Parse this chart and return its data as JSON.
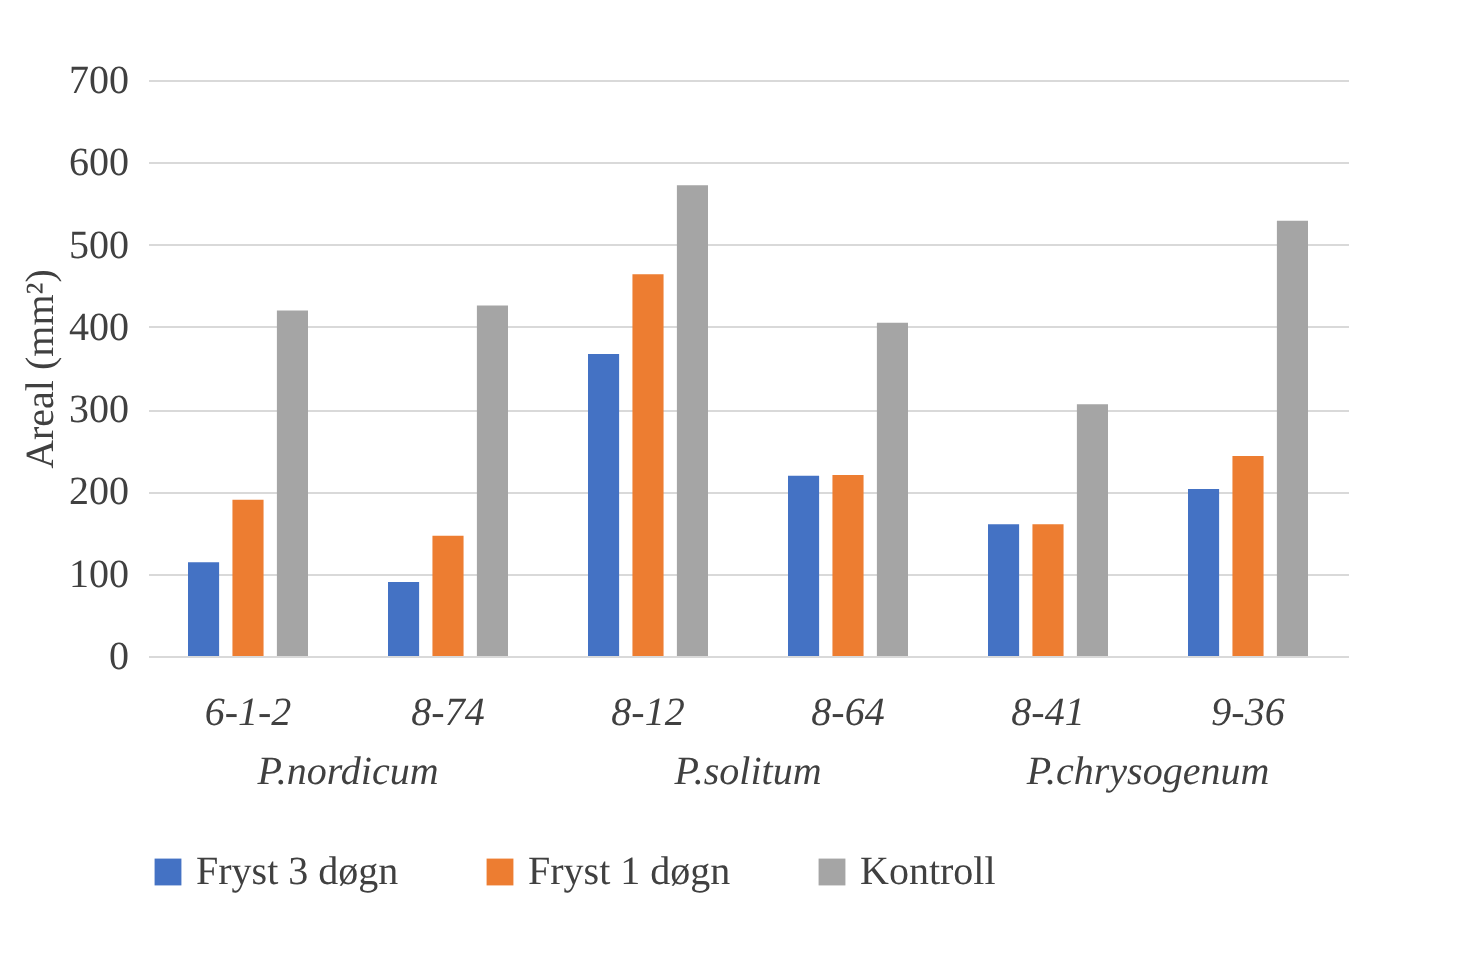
{
  "chart_data": {
    "type": "bar",
    "ylabel": "Areal (mm²)",
    "categories": [
      "6-1-2",
      "8-74",
      "8-12",
      "8-64",
      "8-41",
      "9-36"
    ],
    "series": [
      {
        "name": "Fryst 3 døgn",
        "color": "#4472c4",
        "values": [
          114,
          90,
          367,
          219,
          160,
          203
        ]
      },
      {
        "name": "Fryst 1 døgn",
        "color": "#ed7d31",
        "values": [
          190,
          146,
          464,
          220,
          160,
          243
        ]
      },
      {
        "name": "Kontroll",
        "color": "#a5a5a5",
        "values": [
          420,
          426,
          572,
          405,
          306,
          529
        ]
      }
    ],
    "annotations": [
      "P.nordicum",
      "P.solitum",
      "P.chrysogenum"
    ],
    "ylim": [
      0,
      700
    ],
    "yticks": [
      0,
      100,
      200,
      300,
      400,
      500,
      600,
      700
    ],
    "grid": "y",
    "legend": "bottom"
  }
}
